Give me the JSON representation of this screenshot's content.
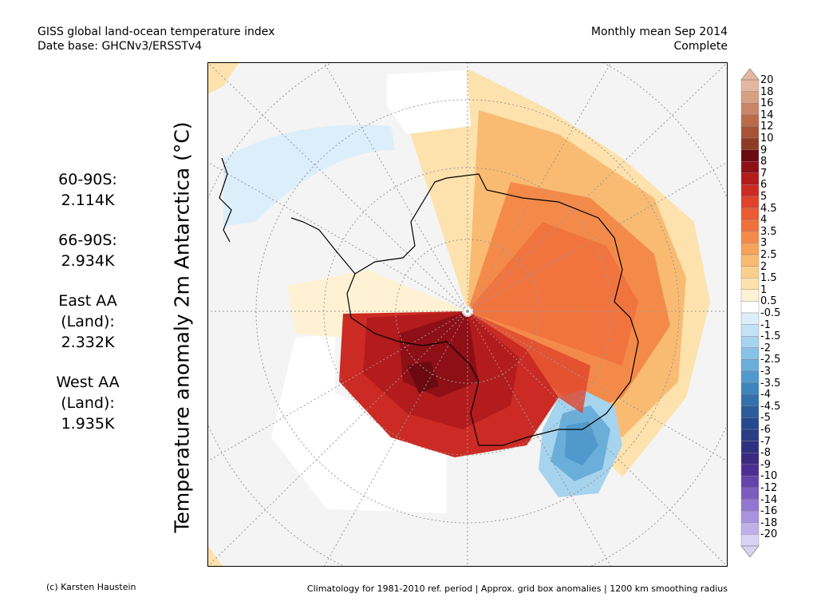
{
  "header": {
    "left_line1": "GISS global land-ocean temperature index",
    "left_line2": "Date base: GHCNv3/ERSSTv4",
    "right_line1": "Monthly mean Sep 2014",
    "right_line2": "Complete"
  },
  "ylabel": "Temperature anomaly 2m Antarctica (°C)",
  "stats": [
    {
      "lines": [
        "60-90S:",
        "2.114K"
      ]
    },
    {
      "lines": [
        "66-90S:",
        "2.934K"
      ]
    },
    {
      "lines": [
        "East AA",
        "(Land):",
        "2.332K"
      ]
    },
    {
      "lines": [
        "West AA",
        "(Land):",
        "1.935K"
      ]
    }
  ],
  "colorbar": {
    "labels": [
      "20",
      "18",
      "16",
      "14",
      "12",
      "10",
      "9",
      "8",
      "7",
      "6",
      "5",
      "4.5",
      "4",
      "3.5",
      "3",
      "2.5",
      "2",
      "1.5",
      "1",
      "0.5",
      "-0.5",
      "-1",
      "-1.5",
      "-2",
      "-2.5",
      "-3",
      "-3.5",
      "-4",
      "-4.5",
      "-5",
      "-6",
      "-7",
      "-8",
      "-9",
      "-10",
      "-12",
      "-14",
      "-16",
      "-18",
      "-20"
    ],
    "colors": [
      "#e6b7a0",
      "#d89f82",
      "#c98565",
      "#b96b4b",
      "#a85236",
      "#8e3b26",
      "#6b0a10",
      "#8e0f16",
      "#b31b1c",
      "#cc2a24",
      "#e0432b",
      "#ea5a33",
      "#f0703d",
      "#f48a4a",
      "#f7a35c",
      "#f9bb72",
      "#fbd08d",
      "#fde2ae",
      "#fff2d4",
      "#ffffff",
      "#dceefa",
      "#c3e2f5",
      "#a6d3ee",
      "#87c1e5",
      "#6aaeda",
      "#5199cc",
      "#3f85bd",
      "#3470ac",
      "#2c5c9d",
      "#26488c",
      "#2a3d85",
      "#303080",
      "#3a2a82",
      "#4d2f94",
      "#6443aa",
      "#7b5cbf",
      "#9277d0",
      "#a993de",
      "#bfb0ea",
      "#d8d2f5"
    ]
  },
  "footer": {
    "left": "(c) Karsten Haustein",
    "right": "Climatology for 1981-2010 ref. period | Approx. grid box anomalies | 1200 km smoothing radius"
  }
}
